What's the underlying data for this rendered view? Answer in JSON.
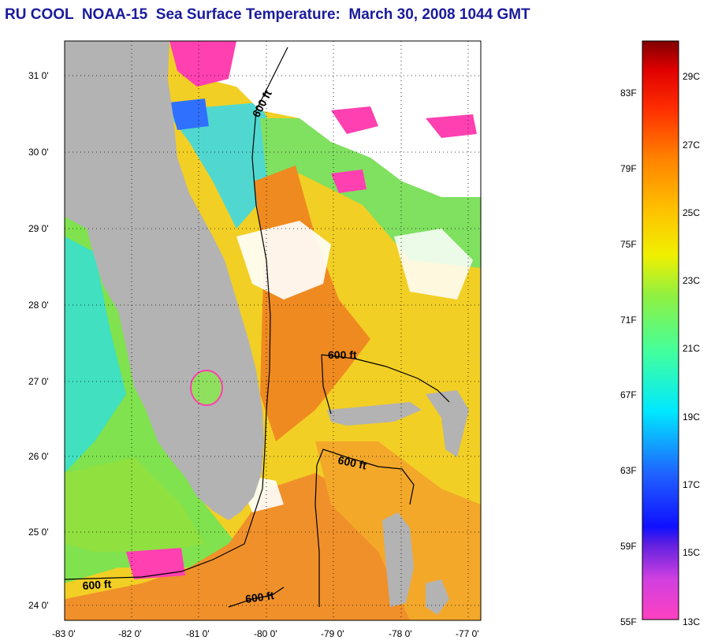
{
  "title": "RU COOL  NOAA-15  Sea Surface Temperature:  March 30, 2008 1044 GMT",
  "map": {
    "lat_labels": [
      "31 0'",
      "30 0'",
      "29 0'",
      "28 0'",
      "27 0'",
      "26 0'",
      "25 0'",
      "24 0'"
    ],
    "lon_labels": [
      "-83 0'",
      "-82 0'",
      "-81 0'",
      "-80 0'",
      "-79 0'",
      "-78 0'",
      "-77 0'"
    ],
    "contour_labels": [
      "600 ft",
      "600 ft",
      "600 ft",
      "600 ft",
      "600 ft"
    ],
    "colors": {
      "land": "#b3b3b3",
      "cloud": "#ffffff",
      "warm": "#f08c1e",
      "mid": "#f5d21e",
      "cool": "#78e650"
    }
  },
  "colorbar": {
    "f_labels": [
      "83F",
      "79F",
      "75F",
      "71F",
      "67F",
      "63F",
      "59F",
      "55F"
    ],
    "c_labels": [
      "29C",
      "27C",
      "25C",
      "23C",
      "21C",
      "19C",
      "17C",
      "15C",
      "13C"
    ]
  }
}
